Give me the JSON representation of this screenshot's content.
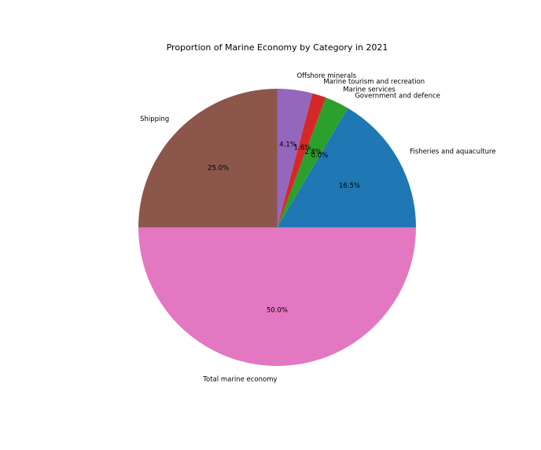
{
  "chart_data": {
    "type": "pie",
    "title": "Proportion of Marine Economy by Category in 2021",
    "categories": [
      "Fisheries and aquaculture",
      "Government and defence",
      "Marine services",
      "Marine tourism and recreation",
      "Offshore minerals",
      "Shipping",
      "Total marine economy"
    ],
    "values": [
      16.5,
      0.0,
      2.8,
      1.6,
      4.1,
      25.0,
      50.0
    ],
    "percent_labels": [
      "16.5%",
      "0.0%",
      "2.8%",
      "1.6%",
      "4.1%",
      "25.0%",
      "50.0%"
    ],
    "start_angle_deg": 0,
    "direction": "counterclockwise",
    "legend": "none"
  },
  "colors": {
    "slices": [
      "#1f77b4",
      "#ff7f0e",
      "#2ca02c",
      "#d62728",
      "#9467bd",
      "#8c564b",
      "#e377c2"
    ],
    "text": "#000000",
    "background": "#ffffff"
  }
}
